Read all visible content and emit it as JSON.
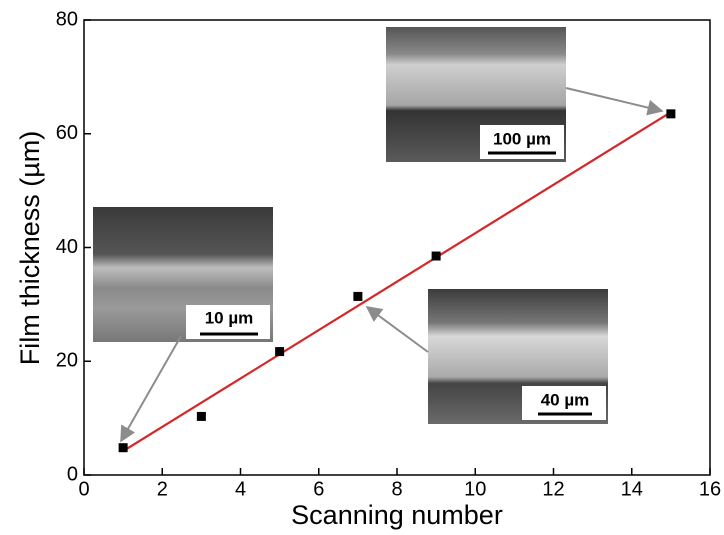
{
  "chart_data": {
    "type": "scatter",
    "xlabel": "Scanning number",
    "ylabel": "Film thickness (µm)",
    "xlim": [
      0,
      16
    ],
    "ylim": [
      0,
      80
    ],
    "xticks": [
      0,
      2,
      4,
      6,
      8,
      10,
      12,
      14,
      16
    ],
    "yticks": [
      0,
      20,
      40,
      60,
      80
    ],
    "series": [
      {
        "color": "#000000",
        "x": [
          1,
          3,
          5,
          7,
          9,
          15
        ],
        "values": [
          4.8,
          10.3,
          21.7,
          31.4,
          38.5,
          63.5
        ]
      }
    ],
    "fit": {
      "color": "#d62728",
      "x": [
        1,
        15
      ],
      "values": [
        4.2,
        63.8
      ]
    },
    "insets": [
      {
        "scale_label": "10 µm"
      },
      {
        "scale_label": "40 µm"
      },
      {
        "scale_label": "100 µm"
      }
    ]
  }
}
